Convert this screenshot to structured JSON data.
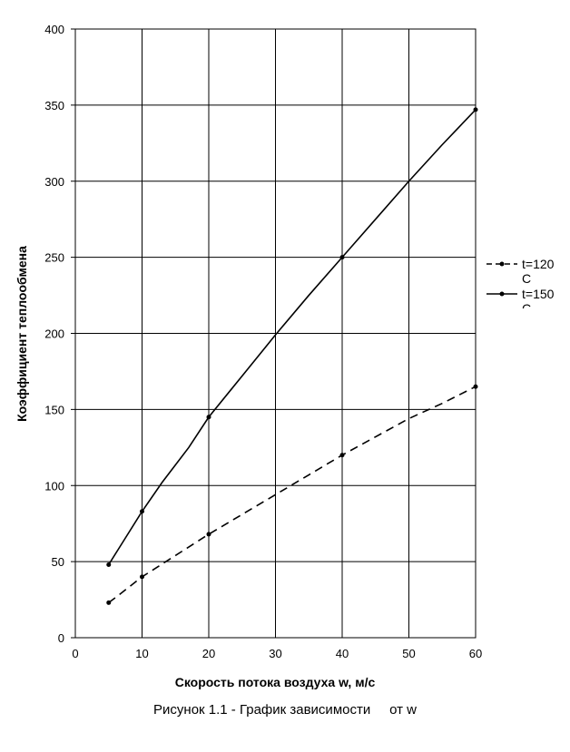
{
  "chart_data": {
    "type": "line",
    "xlabel": "Скорость потока воздуха w, м/с",
    "ylabel": "Коэффициент теплообмена",
    "xlim": [
      0,
      60
    ],
    "ylim": [
      0,
      400
    ],
    "xticks": [
      0,
      10,
      20,
      30,
      40,
      50,
      60
    ],
    "yticks": [
      0,
      50,
      100,
      150,
      200,
      250,
      300,
      350,
      400
    ],
    "grid": true,
    "legend_position": "right",
    "series": [
      {
        "name_line1": "t=120",
        "name_line2": "C",
        "dash": "dashed",
        "color": "#000000",
        "points": [
          [
            5,
            23
          ],
          [
            6.5,
            28
          ],
          [
            10,
            40
          ],
          [
            15,
            54
          ],
          [
            20,
            68
          ],
          [
            25,
            81
          ],
          [
            30,
            94
          ],
          [
            35,
            107
          ],
          [
            40,
            120
          ],
          [
            45,
            132
          ],
          [
            50,
            144
          ],
          [
            55,
            154
          ],
          [
            60,
            165
          ]
        ],
        "markers": [
          [
            5,
            23
          ],
          [
            10,
            40
          ],
          [
            20,
            68
          ],
          [
            40,
            120
          ],
          [
            60,
            165
          ]
        ]
      },
      {
        "name_line1": "t=150",
        "name_line2": "C",
        "dash": "solid",
        "color": "#000000",
        "points": [
          [
            5,
            48
          ],
          [
            7,
            62
          ],
          [
            10,
            83
          ],
          [
            13,
            102
          ],
          [
            17,
            125
          ],
          [
            20,
            145
          ],
          [
            25,
            172
          ],
          [
            30,
            199
          ],
          [
            35,
            225
          ],
          [
            40,
            250
          ],
          [
            45,
            275
          ],
          [
            50,
            300
          ],
          [
            55,
            324
          ],
          [
            60,
            347
          ]
        ],
        "markers": [
          [
            5,
            48
          ],
          [
            10,
            83
          ],
          [
            20,
            145
          ],
          [
            40,
            250
          ],
          [
            60,
            347
          ]
        ]
      }
    ]
  },
  "caption": {
    "before": "Рисунок 1.1 - График зависимости",
    "after": "от w"
  }
}
